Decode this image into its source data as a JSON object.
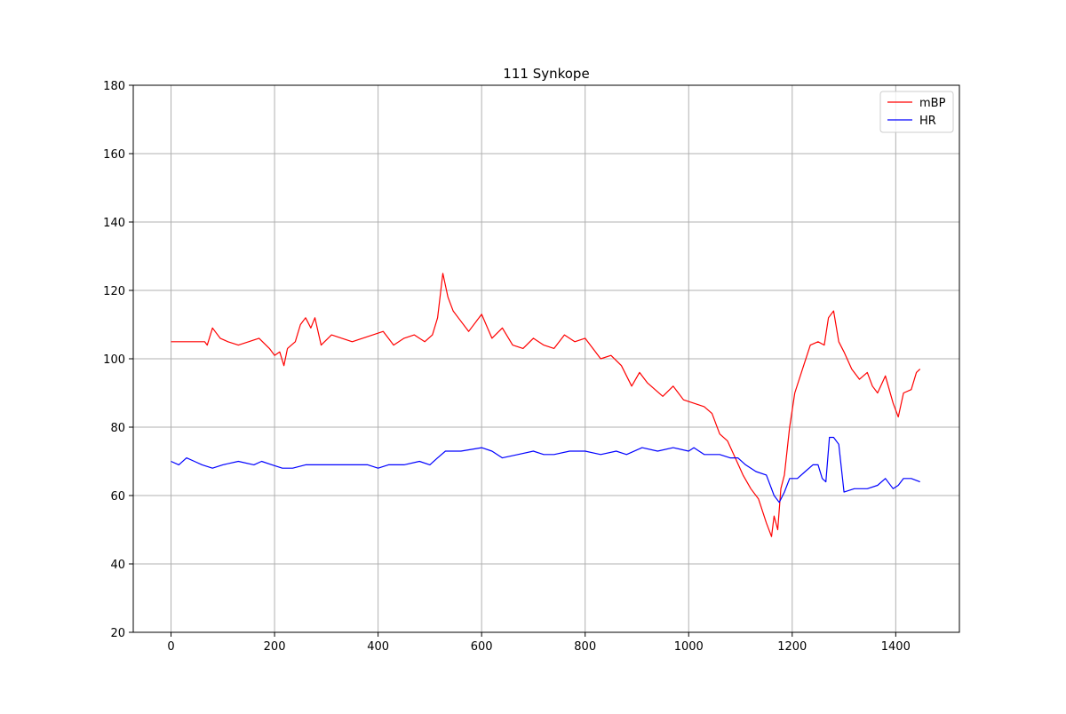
{
  "chart_data": {
    "type": "line",
    "title": "111 Synkope",
    "xlabel": "",
    "ylabel": "",
    "xlim": [
      -73,
      1523
    ],
    "ylim": [
      20,
      180
    ],
    "x_ticks": [
      0,
      200,
      400,
      600,
      800,
      1000,
      1200,
      1400
    ],
    "y_ticks": [
      20,
      40,
      60,
      80,
      100,
      120,
      140,
      160,
      180
    ],
    "grid": true,
    "legend": "top-right",
    "series": [
      {
        "name": "mBP",
        "color": "#ff0000",
        "x": [
          0,
          65,
          70,
          80,
          85,
          95,
          110,
          130,
          150,
          170,
          190,
          200,
          210,
          218,
          225,
          240,
          250,
          260,
          270,
          278,
          290,
          310,
          330,
          350,
          370,
          390,
          410,
          430,
          450,
          470,
          490,
          505,
          515,
          525,
          535,
          545,
          555,
          575,
          600,
          620,
          640,
          660,
          680,
          700,
          720,
          740,
          760,
          780,
          800,
          815,
          830,
          850,
          870,
          890,
          905,
          920,
          935,
          950,
          970,
          990,
          1010,
          1030,
          1045,
          1060,
          1075,
          1090,
          1105,
          1120,
          1135,
          1150,
          1160,
          1165,
          1172,
          1178,
          1185,
          1195,
          1205,
          1220,
          1235,
          1250,
          1262,
          1270,
          1280,
          1290,
          1300,
          1315,
          1330,
          1345,
          1355,
          1365,
          1380,
          1395,
          1405,
          1415,
          1430,
          1440,
          1447
        ],
        "y": [
          105,
          105,
          104,
          109,
          108,
          106,
          105,
          104,
          105,
          106,
          103,
          101,
          102,
          98,
          103,
          105,
          110,
          112,
          109,
          112,
          104,
          107,
          106,
          105,
          106,
          107,
          108,
          104,
          106,
          107,
          105,
          107,
          112,
          125,
          118,
          114,
          112,
          108,
          113,
          106,
          109,
          104,
          103,
          106,
          104,
          103,
          107,
          105,
          106,
          103,
          100,
          101,
          98,
          92,
          96,
          93,
          91,
          89,
          92,
          88,
          87,
          86,
          84,
          78,
          76,
          71,
          66,
          62,
          59,
          52,
          48,
          54,
          50,
          62,
          66,
          80,
          90,
          97,
          104,
          105,
          104,
          112,
          114,
          105,
          102,
          97,
          94,
          96,
          92,
          90,
          95,
          87,
          83,
          90,
          91,
          96,
          97
        ]
      },
      {
        "name": "HR",
        "color": "#0000ff",
        "x": [
          0,
          15,
          30,
          45,
          60,
          80,
          100,
          130,
          160,
          175,
          195,
          215,
          235,
          260,
          290,
          320,
          350,
          380,
          400,
          420,
          450,
          480,
          500,
          515,
          530,
          560,
          600,
          620,
          640,
          670,
          700,
          720,
          740,
          770,
          800,
          830,
          860,
          880,
          910,
          940,
          970,
          1000,
          1010,
          1030,
          1060,
          1080,
          1095,
          1110,
          1130,
          1150,
          1165,
          1175,
          1185,
          1195,
          1210,
          1225,
          1240,
          1250,
          1258,
          1265,
          1272,
          1280,
          1290,
          1300,
          1320,
          1345,
          1365,
          1380,
          1395,
          1405,
          1415,
          1430,
          1447
        ],
        "y": [
          70,
          69,
          71,
          70,
          69,
          68,
          69,
          70,
          69,
          70,
          69,
          68,
          68,
          69,
          69,
          69,
          69,
          69,
          68,
          69,
          69,
          70,
          69,
          71,
          73,
          73,
          74,
          73,
          71,
          72,
          73,
          72,
          72,
          73,
          73,
          72,
          73,
          72,
          74,
          73,
          74,
          73,
          74,
          72,
          72,
          71,
          71,
          69,
          67,
          66,
          60,
          58,
          61,
          65,
          65,
          67,
          69,
          69,
          65,
          64,
          77,
          77,
          75,
          61,
          62,
          62,
          63,
          65,
          62,
          63,
          65,
          65,
          64
        ]
      }
    ]
  }
}
